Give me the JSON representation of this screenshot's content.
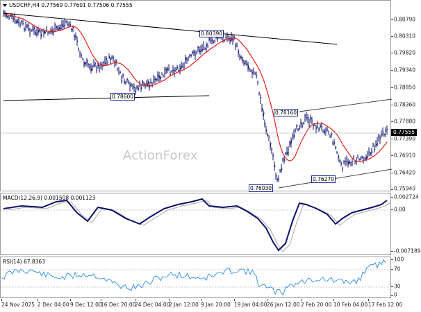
{
  "header": {
    "symbol_info": "USDCHF,H4  0.77569 0.77601 0.77506 0.77555",
    "watermark": "ActionForex"
  },
  "main_chart": {
    "current_price": "0.77555",
    "price_labels": [
      "0.80790",
      "0.80310",
      "0.79820",
      "0.79340",
      "0.78850",
      "0.78360",
      "0.77880",
      "0.77390",
      "0.76910",
      "0.76420",
      "0.75940"
    ],
    "annotations": [
      "0.80390",
      "0.78600",
      "0.78160",
      "0.76270",
      "0.76030"
    ],
    "colors": {
      "bars": "#0a0f6e",
      "moving_average": "#e0201a",
      "trendline": "#000000",
      "channel": "#3a3a3a"
    }
  },
  "macd": {
    "title": "MACD(12,26,9) 0.001508 0.001123",
    "labels": [
      "0.002724",
      "0.00",
      "-0.007189"
    ],
    "colors": {
      "macd_line": "#0a0f6e",
      "signal_line": "#a9a9a9"
    }
  },
  "rsi": {
    "title": "RSI(14) 67.8363",
    "labels": [
      "100",
      "70",
      "30",
      "0"
    ],
    "colors": {
      "rsi_line": "#2c8ce0"
    }
  },
  "time_axis": [
    "24 Nov 2025",
    "2 Dec 04:00",
    "9 Dec 12:00",
    "16 Dec 20:00",
    "24 Dec 04:00",
    "2 Jan 12:00",
    "9 Jan 20:00",
    "19 Jan 04:00",
    "26 Jan 12:00",
    "2 Feb 20:00",
    "10 Feb 04:00",
    "17 Feb 12:00"
  ]
}
